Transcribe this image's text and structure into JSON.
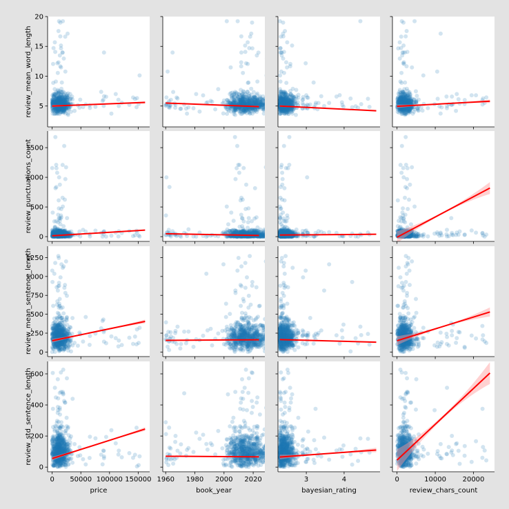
{
  "colors": {
    "figure_bg": "#e3e3e3",
    "axes_bg": "#ffffff",
    "scatter": "#1f77b4",
    "regression": "#ff0000",
    "confidence_band": "#ff9999"
  },
  "chart_data": {
    "type": "scatter",
    "layout": "pairplot 4x4 (regression plots)",
    "x_variables": [
      {
        "name": "price",
        "xlabel": "price",
        "lim": [
          -8000,
          170000
        ],
        "ticks": [
          0,
          50000,
          100000,
          150000
        ],
        "tick_labels": [
          "0",
          "50000",
          "100000",
          "150000"
        ]
      },
      {
        "name": "book_year",
        "xlabel": "book_year",
        "lim": [
          1958,
          2028
        ],
        "ticks": [
          1960,
          1980,
          2000,
          2020
        ],
        "tick_labels": [
          "1960",
          "1980",
          "2000",
          "2020"
        ]
      },
      {
        "name": "bayesian_rating",
        "xlabel": "bayesian_rating",
        "lim": [
          2.25,
          4.95
        ],
        "ticks": [
          3,
          4
        ],
        "tick_labels": [
          "3",
          "4"
        ]
      },
      {
        "name": "review_chars_count",
        "xlabel": "review_chars_count",
        "lim": [
          -1200,
          25500
        ],
        "ticks": [
          0,
          10000,
          20000
        ],
        "tick_labels": [
          "0",
          "10000",
          "20000"
        ]
      }
    ],
    "y_variables": [
      {
        "name": "review_mean_word_length",
        "ylabel": "review_mean_word_length",
        "lim": [
          1.5,
          20
        ],
        "ticks": [
          5,
          10,
          15,
          20
        ],
        "tick_labels": [
          "5",
          "10",
          "15",
          "20"
        ]
      },
      {
        "name": "review_punctuations_count",
        "ylabel": "review_punctuations_count",
        "lim": [
          -80,
          1780
        ],
        "ticks": [
          0,
          500,
          1000,
          1500
        ],
        "tick_labels": [
          "0",
          "500",
          "1000",
          "1500"
        ]
      },
      {
        "name": "review_mean_sentence_length",
        "ylabel": "review_mean_sentence_length",
        "lim": [
          -60,
          1400
        ],
        "ticks": [
          0,
          250,
          500,
          750,
          1000,
          1250
        ],
        "tick_labels": [
          "0",
          "250",
          "500",
          "750",
          "1000",
          "1250"
        ]
      },
      {
        "name": "review_std_sentence_length",
        "ylabel": "review_std_sentence_length",
        "lim": [
          -30,
          680
        ],
        "ticks": [
          0,
          200,
          400,
          600
        ],
        "tick_labels": [
          "0",
          "200",
          "400",
          "600"
        ]
      }
    ],
    "regressions": [
      [
        {
          "x": [
            0,
            162000
          ],
          "y": [
            5.0,
            5.6
          ],
          "band": 0.2
        },
        {
          "x": [
            1960,
            2024
          ],
          "y": [
            5.5,
            4.9
          ],
          "band": 0.15
        },
        {
          "x": [
            2.3,
            4.85
          ],
          "y": [
            5.0,
            4.2
          ],
          "band": 0.15
        },
        {
          "x": [
            0,
            24300
          ],
          "y": [
            4.95,
            5.8
          ],
          "band": 0.3
        }
      ],
      [
        {
          "x": [
            0,
            162000
          ],
          "y": [
            15,
            110
          ],
          "band": 10
        },
        {
          "x": [
            1960,
            2024
          ],
          "y": [
            50,
            20
          ],
          "band": 10
        },
        {
          "x": [
            2.3,
            4.85
          ],
          "y": [
            28,
            40
          ],
          "band": 10
        },
        {
          "x": [
            0,
            24300
          ],
          "y": [
            -10,
            820
          ],
          "band": 100
        }
      ],
      [
        {
          "x": [
            0,
            162000
          ],
          "y": [
            150,
            405
          ],
          "band": 25
        },
        {
          "x": [
            1960,
            2024
          ],
          "y": [
            155,
            162
          ],
          "band": 10
        },
        {
          "x": [
            2.3,
            4.85
          ],
          "y": [
            165,
            130
          ],
          "band": 10
        },
        {
          "x": [
            0,
            24300
          ],
          "y": [
            150,
            530
          ],
          "band": 60
        }
      ],
      [
        {
          "x": [
            0,
            162000
          ],
          "y": [
            55,
            245
          ],
          "band": 12
        },
        {
          "x": [
            1960,
            2024
          ],
          "y": [
            70,
            66
          ],
          "band": 5
        },
        {
          "x": [
            2.3,
            4.85
          ],
          "y": [
            65,
            110
          ],
          "band": 15
        },
        {
          "x": [
            0,
            24300
          ],
          "y": [
            45,
            605
          ],
          "band": 70
        }
      ]
    ],
    "clusters": {
      "x": [
        {
          "mode": 10000,
          "spread": 9000,
          "tail": [
            20000,
            160000
          ],
          "floor": 0
        },
        {
          "mode": 2013,
          "spread": 9,
          "tail": [
            1960,
            2000
          ],
          "floor": null
        },
        {
          "mode": 2.38,
          "spread": 0.15,
          "tail": [
            2.9,
            4.85
          ],
          "floor": 2.3
        },
        {
          "mode": 1500,
          "spread": 1200,
          "tail": [
            5000,
            24000
          ],
          "floor": 0
        }
      ],
      "y": [
        {
          "mode": 5.0,
          "spread": 0.9,
          "tail": [
            7,
            19.3
          ],
          "floor": 2.5
        },
        {
          "mode": 20,
          "spread": 40,
          "tail": [
            150,
            1720
          ],
          "floor": 0
        },
        {
          "mode": 160,
          "spread": 110,
          "tail": [
            450,
            1320
          ],
          "floor": 0
        },
        {
          "mode": 75,
          "spread": 65,
          "tail": [
            250,
            640
          ],
          "floor": 0
        }
      ]
    },
    "scatter_alpha": 0.2,
    "grid": false
  }
}
